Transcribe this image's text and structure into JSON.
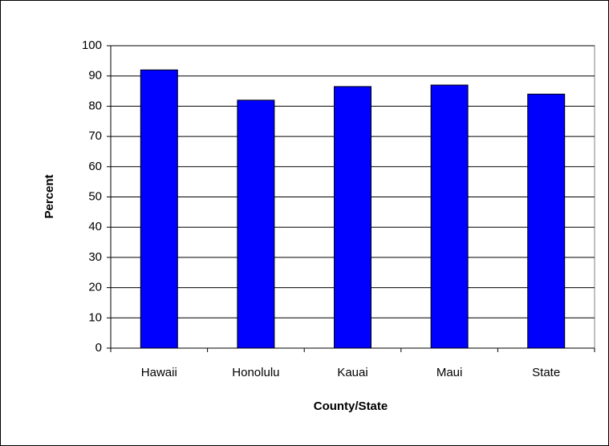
{
  "chart_data": {
    "type": "bar",
    "x_label": "County/State",
    "y_label": "Percent",
    "categories": [
      "Hawaii",
      "Honolulu",
      "Kauai",
      "Maui",
      "State"
    ],
    "values": [
      92,
      82,
      86.5,
      87,
      84
    ],
    "color": "#0000ff",
    "ylim": [
      0,
      100
    ],
    "yticks": [
      0,
      10,
      20,
      30,
      40,
      50,
      60,
      70,
      80,
      90,
      100
    ],
    "grid": true
  }
}
